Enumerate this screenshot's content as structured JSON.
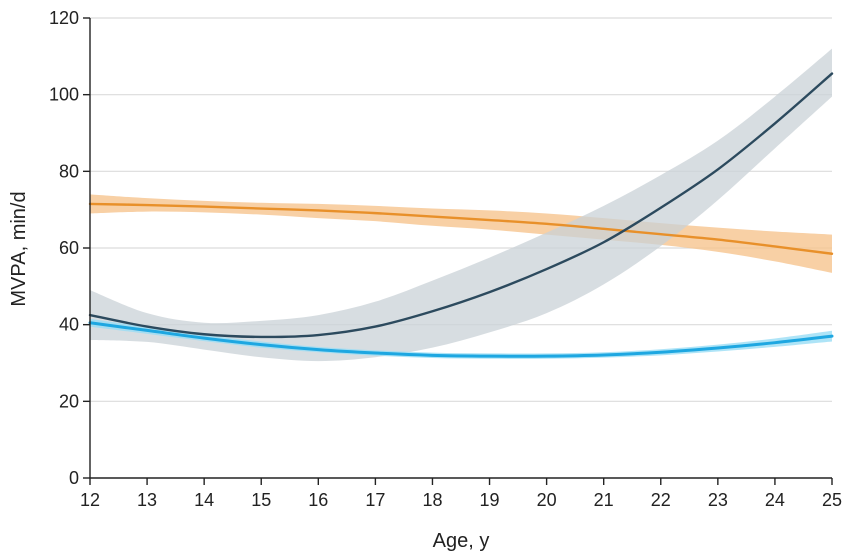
{
  "chart_data": {
    "type": "line",
    "title": "",
    "xlabel": "Age, y",
    "ylabel": "MVPA, min/d",
    "xlim": [
      12,
      25
    ],
    "ylim": [
      0,
      120
    ],
    "xticks": [
      "12",
      "13",
      "14",
      "15",
      "16",
      "17",
      "18",
      "19",
      "20",
      "21",
      "22",
      "23",
      "24",
      "25"
    ],
    "yticks": [
      "0",
      "20",
      "40",
      "60",
      "80",
      "100",
      "120"
    ],
    "grid": "horizontal",
    "series": [
      {
        "color": "#E8902A",
        "band_color": "#F6C48F",
        "x": [
          12,
          13,
          14,
          15,
          16,
          17,
          18,
          19,
          20,
          21,
          22,
          23,
          24,
          25
        ],
        "y": [
          71.5,
          71.2,
          70.8,
          70.3,
          69.8,
          69.1,
          68.2,
          67.3,
          66.3,
          65.0,
          63.6,
          62.2,
          60.4,
          58.5
        ],
        "lower": [
          69.0,
          69.5,
          69.3,
          68.7,
          67.8,
          67.0,
          65.8,
          64.8,
          63.5,
          62.2,
          60.8,
          59.0,
          56.5,
          53.5
        ],
        "upper": [
          74.0,
          73.0,
          72.3,
          71.8,
          71.5,
          71.0,
          70.3,
          69.8,
          69.0,
          67.8,
          66.5,
          65.3,
          64.3,
          63.5
        ]
      },
      {
        "color": "#2C4A5E",
        "band_color": "#C9D1D7",
        "x": [
          12,
          13,
          14,
          15,
          16,
          17,
          18,
          19,
          20,
          21,
          22,
          23,
          24,
          25
        ],
        "y": [
          42.5,
          39.5,
          37.5,
          36.8,
          37.3,
          39.5,
          43.5,
          48.5,
          54.5,
          61.5,
          70.5,
          80.5,
          92.5,
          105.5
        ],
        "lower": [
          36.0,
          35.5,
          33.5,
          31.5,
          30.5,
          31.5,
          34.0,
          38.0,
          43.0,
          50.5,
          60.5,
          72.5,
          86.0,
          99.5
        ],
        "upper": [
          49.0,
          43.0,
          40.5,
          41.0,
          42.5,
          46.0,
          51.5,
          57.5,
          64.0,
          71.0,
          79.0,
          88.0,
          99.5,
          112.0
        ]
      },
      {
        "color": "#1EA7E1",
        "band_color": "#9ADDF5",
        "x": [
          12,
          13,
          14,
          15,
          16,
          17,
          18,
          19,
          20,
          21,
          22,
          23,
          24,
          25
        ],
        "y": [
          40.5,
          38.5,
          36.5,
          34.8,
          33.5,
          32.6,
          32.0,
          31.8,
          31.8,
          32.1,
          32.8,
          33.9,
          35.3,
          37.0
        ],
        "lower": [
          39.5,
          37.6,
          35.7,
          34.0,
          32.8,
          31.9,
          31.3,
          31.1,
          31.1,
          31.4,
          32.0,
          33.0,
          34.2,
          35.6
        ],
        "upper": [
          41.5,
          39.4,
          37.3,
          35.6,
          34.2,
          33.3,
          32.7,
          32.5,
          32.5,
          32.8,
          33.6,
          34.8,
          36.4,
          38.4
        ]
      }
    ]
  }
}
